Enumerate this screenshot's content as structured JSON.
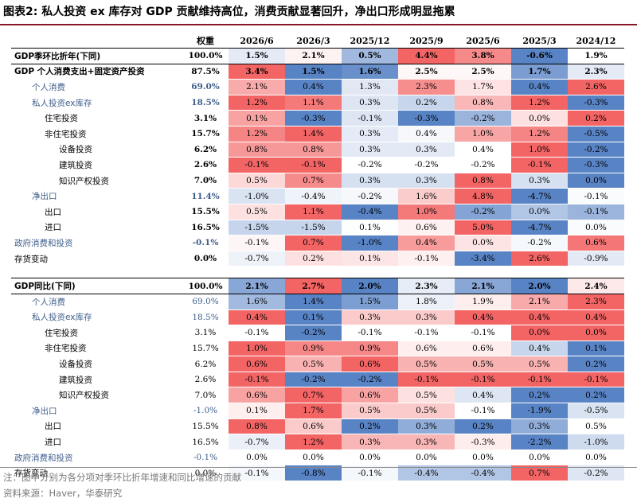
{
  "title": "图表2:  私人投资 ex 库存对 GDP 贡献维持高位，消费贡献显著回升，净出口形成明显拖累",
  "chart_data": {
    "type": "heatmap",
    "columns": [
      "权重",
      "2026/6",
      "2026/3",
      "2025/12",
      "2025/9",
      "2025/6",
      "2025/3",
      "2024/12"
    ],
    "sections": [
      {
        "rows": [
          {
            "label": "GDP季环比折年(下同)",
            "weight": "100.0%",
            "values": [
              "1.5%",
              "2.1%",
              "0.5%",
              "4.4%",
              "3.8%",
              "-0.6%",
              "1.9%"
            ]
          },
          {
            "label": "GDP 个人消费支出+固定资产投资",
            "weight": "87.5%",
            "values": [
              "3.4%",
              "1.5%",
              "1.6%",
              "2.5%",
              "2.5%",
              "1.7%",
              "2.3%"
            ]
          },
          {
            "label": "个人消费",
            "weight": "69.0%",
            "values": [
              "2.1%",
              "0.4%",
              "1.3%",
              "2.3%",
              "1.7%",
              "0.4%",
              "2.6%"
            ]
          },
          {
            "label": "私人投资ex库存",
            "weight": "18.5%",
            "values": [
              "1.2%",
              "1.1%",
              "0.3%",
              "0.2%",
              "0.8%",
              "1.2%",
              "-0.3%"
            ]
          },
          {
            "label": "住宅投资",
            "weight": "3.1%",
            "values": [
              "0.1%",
              "-0.3%",
              "-0.1%",
              "-0.3%",
              "-0.2%",
              "0.0%",
              "0.2%"
            ]
          },
          {
            "label": "非住宅投资",
            "weight": "15.7%",
            "values": [
              "1.2%",
              "1.4%",
              "0.3%",
              "0.4%",
              "1.0%",
              "1.2%",
              "-0.5%"
            ]
          },
          {
            "label": "设备投资",
            "weight": "6.2%",
            "values": [
              "0.8%",
              "0.8%",
              "0.3%",
              "0.3%",
              "0.4%",
              "1.0%",
              "-0.2%"
            ]
          },
          {
            "label": "建筑投资",
            "weight": "2.6%",
            "values": [
              "-0.1%",
              "-0.1%",
              "-0.2%",
              "-0.2%",
              "-0.2%",
              "-0.1%",
              "-0.3%"
            ]
          },
          {
            "label": "知识产权投资",
            "weight": "7.0%",
            "values": [
              "0.5%",
              "0.7%",
              "0.3%",
              "0.3%",
              "0.8%",
              "0.3%",
              "0.0%"
            ]
          },
          {
            "label": "净出口",
            "weight": "11.4%",
            "values": [
              "-1.0%",
              "-0.4%",
              "-0.2%",
              "1.6%",
              "4.8%",
              "-4.7%",
              "-0.1%"
            ]
          },
          {
            "label": "出口",
            "weight": "15.5%",
            "values": [
              "0.5%",
              "1.1%",
              "-0.4%",
              "1.0%",
              "-0.2%",
              "0.0%",
              "-0.1%"
            ]
          },
          {
            "label": "进口",
            "weight": "16.5%",
            "values": [
              "-1.5%",
              "-1.5%",
              "0.1%",
              "0.6%",
              "5.0%",
              "-4.7%",
              "0.0%"
            ]
          },
          {
            "label": "政府消费和投资",
            "weight": "-0.1%",
            "values": [
              "-0.1%",
              "0.7%",
              "-1.0%",
              "0.4%",
              "0.0%",
              "-0.2%",
              "0.6%"
            ]
          },
          {
            "label": "存货变动",
            "weight": "0.0%",
            "values": [
              "-0.7%",
              "0.2%",
              "0.1%",
              "-0.1%",
              "-3.4%",
              "2.6%",
              "-0.9%"
            ]
          }
        ]
      },
      {
        "rows": [
          {
            "label": "GDP同比(下同)",
            "weight": "100.0%",
            "values": [
              "2.1%",
              "2.7%",
              "2.0%",
              "2.3%",
              "2.1%",
              "2.0%",
              "2.4%"
            ]
          },
          {
            "label": "个人消费",
            "weight": "69.0%",
            "values": [
              "1.6%",
              "1.4%",
              "1.5%",
              "1.8%",
              "1.9%",
              "2.1%",
              "2.3%"
            ]
          },
          {
            "label": "私人投资ex库存",
            "weight": "18.5%",
            "values": [
              "0.4%",
              "0.1%",
              "0.3%",
              "0.3%",
              "0.4%",
              "0.4%",
              "0.4%"
            ]
          },
          {
            "label": "住宅投资",
            "weight": "3.1%",
            "values": [
              "-0.1%",
              "-0.2%",
              "-0.1%",
              "-0.1%",
              "-0.1%",
              "0.0%",
              "0.0%"
            ]
          },
          {
            "label": "非住宅投资",
            "weight": "15.7%",
            "values": [
              "1.0%",
              "0.9%",
              "0.9%",
              "0.6%",
              "0.6%",
              "0.4%",
              "0.1%"
            ]
          },
          {
            "label": "设备投资",
            "weight": "6.2%",
            "values": [
              "0.6%",
              "0.5%",
              "0.6%",
              "0.5%",
              "0.5%",
              "0.5%",
              "0.2%"
            ]
          },
          {
            "label": "建筑投资",
            "weight": "2.6%",
            "values": [
              "-0.1%",
              "-0.2%",
              "-0.2%",
              "-0.1%",
              "-0.1%",
              "-0.1%",
              "-0.1%"
            ]
          },
          {
            "label": "知识产权投资",
            "weight": "7.0%",
            "values": [
              "0.6%",
              "0.7%",
              "0.6%",
              "0.5%",
              "0.4%",
              "0.2%",
              "0.2%"
            ]
          },
          {
            "label": "净出口",
            "weight": "-1.0%",
            "values": [
              "0.1%",
              "1.7%",
              "0.5%",
              "0.5%",
              "-0.1%",
              "-1.9%",
              "-0.5%"
            ]
          },
          {
            "label": "出口",
            "weight": "15.5%",
            "values": [
              "0.8%",
              "0.6%",
              "0.2%",
              "0.3%",
              "0.2%",
              "0.3%",
              "0.5%"
            ]
          },
          {
            "label": "进口",
            "weight": "16.5%",
            "values": [
              "-0.7%",
              "1.2%",
              "0.3%",
              "0.3%",
              "-0.3%",
              "-2.2%",
              "-1.0%"
            ]
          },
          {
            "label": "政府消费和投资",
            "weight": "-0.1%",
            "values": [
              "0.0%",
              "0.0%",
              "0.0%",
              "0.0%",
              "0.0%",
              "0.0%",
              "0.0%"
            ]
          },
          {
            "label": "存货变动",
            "weight": "0.0%",
            "values": [
              "-0.1%",
              "-0.8%",
              "-0.1%",
              "-0.4%",
              "-0.4%",
              "0.7%",
              "-0.2%"
            ]
          }
        ]
      }
    ],
    "colors": {
      "high": "#f25c5c",
      "low": "#4f7cc2",
      "mid": "#ffffff"
    }
  },
  "note": "注：图中分别为各分项对季环比折年增速和同比增速的贡献",
  "source": "资料来源：Haver，华泰研究"
}
